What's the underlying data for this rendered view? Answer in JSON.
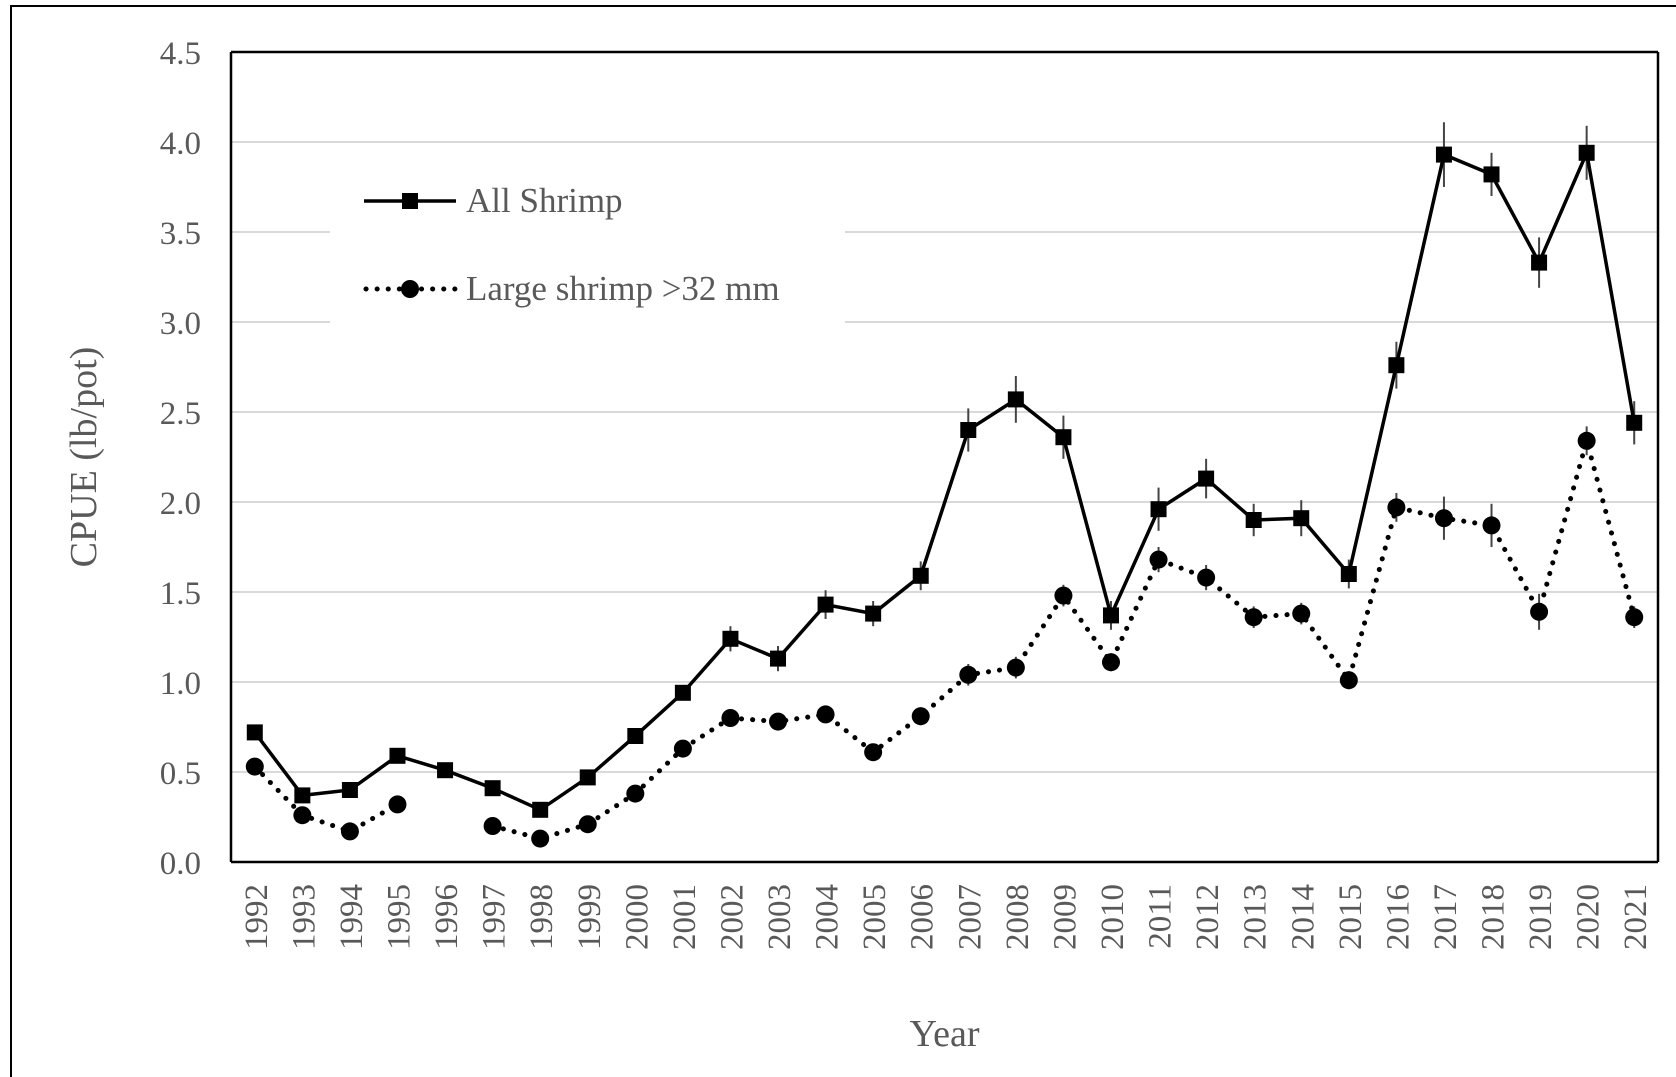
{
  "chart_data": {
    "type": "line",
    "title": "",
    "xlabel": "Year",
    "ylabel": "CPUE (lb/pot)",
    "ylim": [
      0,
      4.5
    ],
    "yticks": [
      "0.0",
      "0.5",
      "1.0",
      "1.5",
      "2.0",
      "2.5",
      "3.0",
      "3.5",
      "4.0",
      "4.5"
    ],
    "grid": "horizontal",
    "legend_position": "top-left",
    "categories": [
      "1992",
      "1993",
      "1994",
      "1995",
      "1996",
      "1997",
      "1998",
      "1999",
      "2000",
      "2001",
      "2002",
      "2003",
      "2004",
      "2005",
      "2006",
      "2007",
      "2008",
      "2009",
      "2010",
      "2011",
      "2012",
      "2013",
      "2014",
      "2015",
      "2016",
      "2017",
      "2018",
      "2019",
      "2020",
      "2021"
    ],
    "series": [
      {
        "name": "All Shrimp",
        "line_style": "solid",
        "marker": "square",
        "color": "#000000",
        "values": [
          0.72,
          0.37,
          0.4,
          0.59,
          0.51,
          0.41,
          0.29,
          0.47,
          0.7,
          0.94,
          1.24,
          1.13,
          1.43,
          1.38,
          1.59,
          2.4,
          2.57,
          2.36,
          1.37,
          1.96,
          2.13,
          1.9,
          1.91,
          1.6,
          2.76,
          3.93,
          3.82,
          3.33,
          3.94,
          2.44
        ],
        "error": [
          0.03,
          0.03,
          0.03,
          0.03,
          0.03,
          0.03,
          0.03,
          0.03,
          0.04,
          0.04,
          0.07,
          0.07,
          0.08,
          0.07,
          0.08,
          0.12,
          0.13,
          0.12,
          0.08,
          0.12,
          0.11,
          0.09,
          0.1,
          0.08,
          0.13,
          0.18,
          0.12,
          0.14,
          0.15,
          0.12
        ]
      },
      {
        "name": "Large shrimp >32 mm",
        "line_style": "dotted",
        "marker": "circle",
        "color": "#000000",
        "values": [
          0.53,
          0.26,
          0.17,
          0.32,
          null,
          0.2,
          0.13,
          0.21,
          0.38,
          0.63,
          0.8,
          0.78,
          0.82,
          0.61,
          0.81,
          1.04,
          1.08,
          1.48,
          1.11,
          1.68,
          1.58,
          1.36,
          1.38,
          1.01,
          1.97,
          1.91,
          1.87,
          1.39,
          2.34,
          1.36
        ],
        "error": [
          0.02,
          0.02,
          0.02,
          0.02,
          0,
          0.02,
          0.02,
          0.02,
          0.03,
          0.03,
          0.04,
          0.04,
          0.04,
          0.04,
          0.05,
          0.06,
          0.06,
          0.06,
          0.05,
          0.07,
          0.07,
          0.06,
          0.06,
          0.05,
          0.08,
          0.12,
          0.12,
          0.1,
          0.08,
          0.06
        ]
      }
    ]
  }
}
